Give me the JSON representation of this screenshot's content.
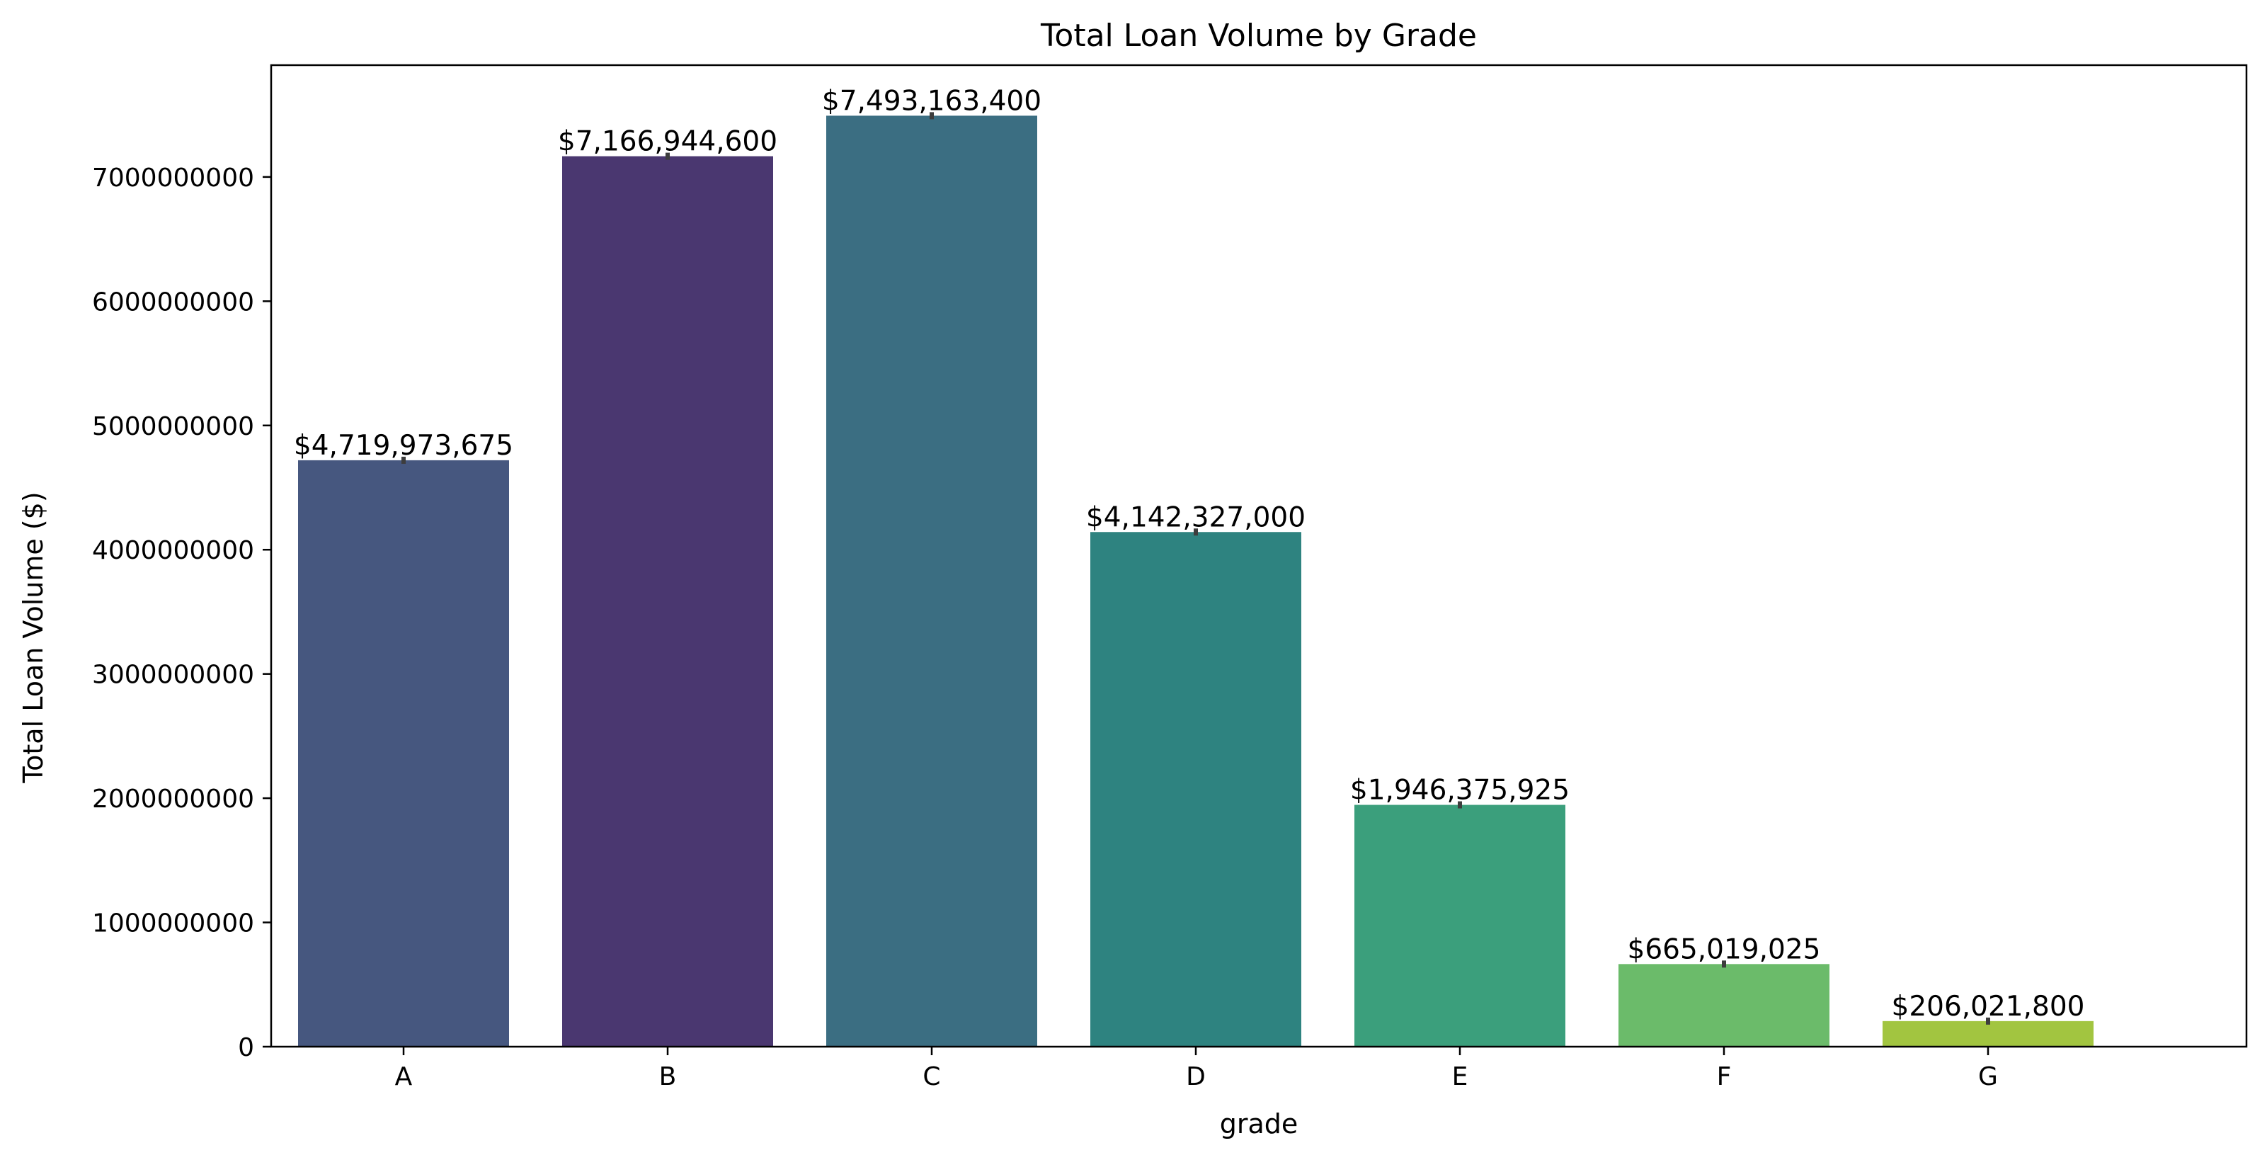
{
  "chart_data": {
    "type": "bar",
    "title": "Total Loan Volume by Grade",
    "xlabel": "grade",
    "ylabel": "Total Loan Volume ($)",
    "categories": [
      "A",
      "B",
      "C",
      "D",
      "E",
      "F",
      "G"
    ],
    "values": [
      4719973675,
      7166944600,
      7493163400,
      4142327000,
      1946375925,
      665019025,
      206021800
    ],
    "value_labels": [
      "$4,719,973,675",
      "$7,166,944,600",
      "$7,493,163,400",
      "$4,142,327,000",
      "$1,946,375,925",
      "$665,019,025",
      "$206,021,800"
    ],
    "colors": [
      "#46577f",
      "#4a3770",
      "#3b6e82",
      "#2e8380",
      "#3b9f7c",
      "#6bbb6a",
      "#a2c540"
    ],
    "yticks": [
      0,
      1000000000,
      2000000000,
      3000000000,
      4000000000,
      5000000000,
      6000000000,
      7000000000
    ],
    "ytick_labels": [
      "0",
      "1000000000",
      "2000000000",
      "3000000000",
      "4000000000",
      "5000000000",
      "6000000000",
      "7000000000"
    ],
    "ylim": [
      0,
      7900000000
    ],
    "grid": false,
    "legend": "none"
  }
}
